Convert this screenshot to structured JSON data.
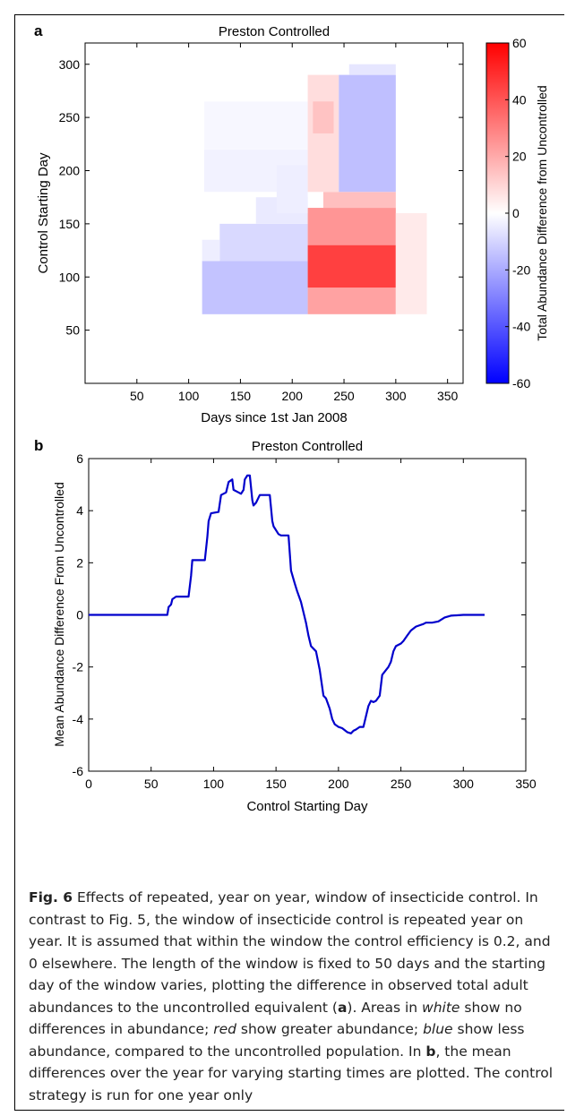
{
  "chart_data": [
    {
      "panel": "a",
      "type": "heatmap",
      "title": "Preston Controlled",
      "xlabel": "Days since 1st Jan 2008",
      "ylabel": "Control Starting Day",
      "xlim": [
        0,
        365
      ],
      "ylim": [
        0,
        320
      ],
      "xticks": [
        50,
        100,
        150,
        200,
        250,
        300,
        350
      ],
      "yticks": [
        50,
        100,
        150,
        200,
        250,
        300
      ],
      "colorbar": {
        "label": "Total Abundance Difference from Uncontrolled",
        "range": [
          -60,
          60
        ],
        "ticks": [
          60,
          40,
          20,
          0,
          -20,
          -40,
          -60
        ],
        "colors": {
          "low": "#0000ff",
          "mid": "#ffffff",
          "high": "#ff0000"
        }
      },
      "regions": [
        {
          "x": [
            113,
            215
          ],
          "y": [
            65,
            115
          ],
          "value": -14
        },
        {
          "x": [
            130,
            215
          ],
          "y": [
            115,
            150
          ],
          "value": -9
        },
        {
          "x": [
            113,
            130
          ],
          "y": [
            115,
            135
          ],
          "value": -4
        },
        {
          "x": [
            165,
            215
          ],
          "y": [
            150,
            175
          ],
          "value": -5
        },
        {
          "x": [
            215,
            300
          ],
          "y": [
            65,
            90
          ],
          "value": 22
        },
        {
          "x": [
            215,
            300
          ],
          "y": [
            90,
            130
          ],
          "value": 45
        },
        {
          "x": [
            215,
            300
          ],
          "y": [
            130,
            165
          ],
          "value": 25
        },
        {
          "x": [
            230,
            300
          ],
          "y": [
            165,
            180
          ],
          "value": 15
        },
        {
          "x": [
            300,
            330
          ],
          "y": [
            65,
            160
          ],
          "value": 5
        },
        {
          "x": [
            115,
            215
          ],
          "y": [
            180,
            220
          ],
          "value": -3
        },
        {
          "x": [
            115,
            215
          ],
          "y": [
            220,
            265
          ],
          "value": -2
        },
        {
          "x": [
            185,
            215
          ],
          "y": [
            160,
            205
          ],
          "value": -4
        },
        {
          "x": [
            215,
            245
          ],
          "y": [
            180,
            290
          ],
          "value": 8
        },
        {
          "x": [
            245,
            300
          ],
          "y": [
            180,
            290
          ],
          "value": -15
        },
        {
          "x": [
            255,
            300
          ],
          "y": [
            290,
            300
          ],
          "value": -6
        },
        {
          "x": [
            220,
            240
          ],
          "y": [
            235,
            265
          ],
          "value": 14
        }
      ]
    },
    {
      "panel": "b",
      "type": "line",
      "title": "Preston Controlled",
      "xlabel": "Control Starting Day",
      "ylabel": "Mean Abundance Difference From Uncontrolled",
      "xlim": [
        0,
        350
      ],
      "ylim": [
        -6,
        6
      ],
      "xticks": [
        0,
        50,
        100,
        150,
        200,
        250,
        300,
        350
      ],
      "yticks": [
        6,
        4,
        2,
        0,
        -2,
        -4,
        -6
      ],
      "line_color": "#0000cc",
      "x": [
        0,
        63,
        64,
        66,
        67,
        70,
        72,
        80,
        82,
        83,
        93,
        95,
        96,
        98,
        104,
        106,
        110,
        112,
        115,
        116,
        120,
        122,
        124,
        125,
        127,
        129,
        131,
        132,
        134,
        137,
        139,
        140,
        145,
        147,
        148,
        152,
        154,
        160,
        162,
        165,
        167,
        170,
        172,
        174,
        176,
        178,
        180,
        182,
        185,
        188,
        190,
        193,
        195,
        197,
        200,
        203,
        207,
        210,
        212,
        214,
        217,
        220,
        224,
        226,
        228,
        230,
        233,
        235,
        240,
        242,
        244,
        246,
        250,
        252,
        255,
        258,
        262,
        265,
        268,
        270,
        275,
        280,
        285,
        290,
        300,
        317
      ],
      "y": [
        0,
        0,
        0.3,
        0.4,
        0.6,
        0.7,
        0.7,
        0.7,
        1.5,
        2.1,
        2.1,
        3.0,
        3.6,
        3.9,
        3.95,
        4.6,
        4.7,
        5.1,
        5.2,
        4.8,
        4.7,
        4.65,
        4.8,
        5.2,
        5.35,
        5.35,
        4.4,
        4.2,
        4.3,
        4.6,
        4.6,
        4.6,
        4.6,
        3.6,
        3.4,
        3.1,
        3.05,
        3.05,
        1.7,
        1.2,
        0.9,
        0.5,
        0.1,
        -0.3,
        -0.8,
        -1.2,
        -1.3,
        -1.4,
        -2.1,
        -3.1,
        -3.2,
        -3.6,
        -4.0,
        -4.2,
        -4.3,
        -4.35,
        -4.5,
        -4.55,
        -4.45,
        -4.4,
        -4.3,
        -4.3,
        -3.5,
        -3.3,
        -3.35,
        -3.3,
        -3.1,
        -2.3,
        -2.0,
        -1.8,
        -1.4,
        -1.2,
        -1.1,
        -1.0,
        -0.8,
        -0.6,
        -0.45,
        -0.4,
        -0.35,
        -0.3,
        -0.3,
        -0.25,
        -0.1,
        -0.03,
        0,
        0
      ]
    }
  ],
  "panel_labels": {
    "a": "a",
    "b": "b"
  },
  "caption": {
    "fig_label": "Fig. 6",
    "seg1": " Effects of repeated, year on year, window of insecticide control. In contrast to Fig. 5, the window of insecticide control is repeated year on year. It is assumed that within the window the control efficiency is 0.2, and 0 elsewhere. The length of the window is fixed to 50 days and the starting day of the window varies, plotting the difference in observed total adult abundances to the uncontrolled equivalent (",
    "ref_a": "a",
    "seg2": "). Areas in ",
    "white": "white",
    "seg3": " show no differences in abundance; ",
    "red": "red",
    "seg4": " show greater abundance; ",
    "blue": "blue",
    "seg5": " show less abundance, compared to the uncontrolled population. In ",
    "ref_b": "b",
    "seg6": ", the mean differences over the year for varying starting times are plotted. The control strategy is run for one year only"
  }
}
